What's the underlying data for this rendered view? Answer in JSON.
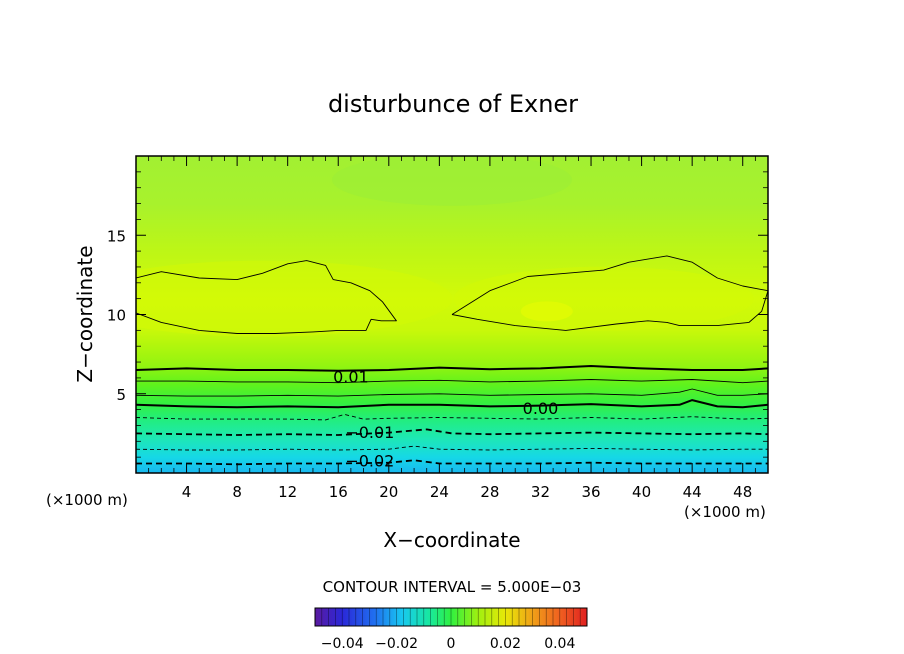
{
  "chart_data": {
    "type": "contour",
    "title": "disturbunce of Exner",
    "xlabel": "X−coordinate",
    "ylabel": "Z−coordinate",
    "x_unit_left": "(×1000 m)",
    "x_unit_right": "(×1000 m)",
    "xlim": [
      0,
      50
    ],
    "ylim": [
      0,
      20
    ],
    "x_ticks": [
      4,
      8,
      12,
      16,
      20,
      24,
      28,
      32,
      36,
      40,
      44,
      48
    ],
    "y_ticks": [
      5,
      10,
      15
    ],
    "contour_interval_text": "CONTOUR INTERVAL = 5.000E−03",
    "contour_labels": [
      {
        "text": "0.01",
        "x": 17,
        "z": 6.1
      },
      {
        "text": "0.00",
        "x": 32,
        "z": 4.1
      },
      {
        "text": "−0.01",
        "x": 18.5,
        "z": 2.6
      },
      {
        "text": "−0.02",
        "x": 18.5,
        "z": 0.8
      }
    ],
    "contours": [
      {
        "level": 0.005,
        "style": "thin",
        "points": [
          [
            0,
            12.3
          ],
          [
            2,
            12.7
          ],
          [
            5,
            12.3
          ],
          [
            8,
            12.2
          ],
          [
            10,
            12.6
          ],
          [
            12,
            13.2
          ],
          [
            13.5,
            13.4
          ],
          [
            15,
            13.1
          ],
          [
            15.6,
            12.2
          ],
          [
            17,
            12.0
          ],
          [
            18.5,
            11.5
          ],
          [
            19.5,
            10.8
          ],
          [
            20.6,
            9.6
          ],
          [
            19.4,
            9.6
          ],
          [
            18.6,
            9.7
          ],
          [
            18.2,
            9.0
          ],
          [
            16,
            9.0
          ],
          [
            14,
            8.9
          ],
          [
            11,
            8.8
          ],
          [
            8,
            8.8
          ],
          [
            5,
            9.0
          ],
          [
            2,
            9.5
          ],
          [
            0,
            10.1
          ]
        ]
      },
      {
        "level": 0.005,
        "style": "thin",
        "points": [
          [
            25,
            10.0
          ],
          [
            28,
            11.5
          ],
          [
            31,
            12.4
          ],
          [
            34,
            12.6
          ],
          [
            37,
            12.8
          ],
          [
            39,
            13.3
          ],
          [
            42,
            13.7
          ],
          [
            44,
            13.3
          ],
          [
            46,
            12.3
          ],
          [
            48,
            11.8
          ],
          [
            50,
            11.5
          ],
          [
            49.5,
            10.2
          ],
          [
            48.5,
            9.5
          ],
          [
            46,
            9.3
          ],
          [
            43,
            9.3
          ],
          [
            42,
            9.5
          ],
          [
            40.5,
            9.6
          ],
          [
            38,
            9.4
          ],
          [
            34,
            9.0
          ],
          [
            30,
            9.3
          ],
          [
            27,
            9.7
          ],
          [
            25,
            10.0
          ]
        ]
      },
      {
        "level": 0.01,
        "style": "thick",
        "points": [
          [
            0,
            6.5
          ],
          [
            4,
            6.6
          ],
          [
            8,
            6.5
          ],
          [
            12,
            6.5
          ],
          [
            16,
            6.45
          ],
          [
            20,
            6.5
          ],
          [
            24,
            6.65
          ],
          [
            28,
            6.55
          ],
          [
            32,
            6.6
          ],
          [
            36,
            6.75
          ],
          [
            40,
            6.6
          ],
          [
            44,
            6.5
          ],
          [
            48,
            6.5
          ],
          [
            50,
            6.6
          ]
        ]
      },
      {
        "level": 0.0075,
        "style": "thin",
        "points": [
          [
            0,
            5.8
          ],
          [
            4,
            5.8
          ],
          [
            8,
            5.75
          ],
          [
            12,
            5.75
          ],
          [
            16,
            5.7
          ],
          [
            20,
            5.8
          ],
          [
            24,
            5.85
          ],
          [
            28,
            5.75
          ],
          [
            32,
            5.8
          ],
          [
            36,
            5.9
          ],
          [
            40,
            5.8
          ],
          [
            44,
            5.9
          ],
          [
            48,
            5.7
          ],
          [
            50,
            5.8
          ]
        ]
      },
      {
        "level": 0.0025,
        "style": "thin",
        "points": [
          [
            0,
            4.9
          ],
          [
            4,
            4.85
          ],
          [
            8,
            4.85
          ],
          [
            12,
            4.9
          ],
          [
            16,
            4.85
          ],
          [
            20,
            4.95
          ],
          [
            24,
            5.0
          ],
          [
            28,
            4.9
          ],
          [
            32,
            4.95
          ],
          [
            36,
            5.0
          ],
          [
            40,
            4.9
          ],
          [
            43,
            5.1
          ],
          [
            44,
            5.3
          ],
          [
            46,
            4.9
          ],
          [
            48,
            4.9
          ],
          [
            50,
            5.0
          ]
        ]
      },
      {
        "level": 0.0,
        "style": "thick",
        "points": [
          [
            0,
            4.3
          ],
          [
            4,
            4.2
          ],
          [
            8,
            4.15
          ],
          [
            12,
            4.2
          ],
          [
            16,
            4.15
          ],
          [
            20,
            4.3
          ],
          [
            24,
            4.3
          ],
          [
            28,
            4.2
          ],
          [
            32,
            4.25
          ],
          [
            36,
            4.35
          ],
          [
            40,
            4.2
          ],
          [
            43,
            4.3
          ],
          [
            44,
            4.6
          ],
          [
            46,
            4.2
          ],
          [
            48,
            4.15
          ],
          [
            50,
            4.3
          ]
        ]
      },
      {
        "level": -0.005,
        "style": "dashed",
        "points": [
          [
            0,
            3.5
          ],
          [
            4,
            3.4
          ],
          [
            8,
            3.4
          ],
          [
            12,
            3.4
          ],
          [
            15,
            3.35
          ],
          [
            16.5,
            3.7
          ],
          [
            18,
            3.4
          ],
          [
            20,
            3.45
          ],
          [
            24,
            3.5
          ],
          [
            28,
            3.45
          ],
          [
            32,
            3.4
          ],
          [
            36,
            3.5
          ],
          [
            40,
            3.4
          ],
          [
            44,
            3.55
          ],
          [
            48,
            3.4
          ],
          [
            50,
            3.45
          ]
        ]
      },
      {
        "level": -0.01,
        "style": "dashed-thick",
        "points": [
          [
            0,
            2.5
          ],
          [
            4,
            2.45
          ],
          [
            8,
            2.4
          ],
          [
            12,
            2.45
          ],
          [
            16,
            2.4
          ],
          [
            20,
            2.55
          ],
          [
            23,
            2.75
          ],
          [
            25,
            2.5
          ],
          [
            28,
            2.45
          ],
          [
            32,
            2.5
          ],
          [
            36,
            2.55
          ],
          [
            40,
            2.5
          ],
          [
            44,
            2.45
          ],
          [
            48,
            2.5
          ],
          [
            50,
            2.45
          ]
        ]
      },
      {
        "level": -0.015,
        "style": "dashed",
        "points": [
          [
            0,
            1.5
          ],
          [
            4,
            1.45
          ],
          [
            8,
            1.45
          ],
          [
            12,
            1.5
          ],
          [
            16,
            1.45
          ],
          [
            20,
            1.5
          ],
          [
            22,
            1.7
          ],
          [
            24,
            1.5
          ],
          [
            28,
            1.45
          ],
          [
            32,
            1.5
          ],
          [
            36,
            1.55
          ],
          [
            40,
            1.5
          ],
          [
            44,
            1.45
          ],
          [
            48,
            1.5
          ],
          [
            50,
            1.5
          ]
        ]
      },
      {
        "level": -0.02,
        "style": "dashed-thick",
        "points": [
          [
            0,
            0.6
          ],
          [
            4,
            0.6
          ],
          [
            8,
            0.55
          ],
          [
            12,
            0.6
          ],
          [
            16,
            0.6
          ],
          [
            20,
            0.65
          ],
          [
            22,
            0.8
          ],
          [
            24,
            0.6
          ],
          [
            28,
            0.6
          ],
          [
            32,
            0.6
          ],
          [
            36,
            0.65
          ],
          [
            40,
            0.6
          ],
          [
            44,
            0.6
          ],
          [
            48,
            0.6
          ],
          [
            50,
            0.6
          ]
        ]
      }
    ],
    "colorbar": {
      "range": [
        -0.05,
        0.05
      ],
      "ticks": [
        -0.04,
        -0.02,
        0,
        0.02,
        0.04
      ],
      "tick_labels": [
        "−0.04",
        "−0.02",
        "0",
        "0.02",
        "0.04"
      ]
    }
  }
}
